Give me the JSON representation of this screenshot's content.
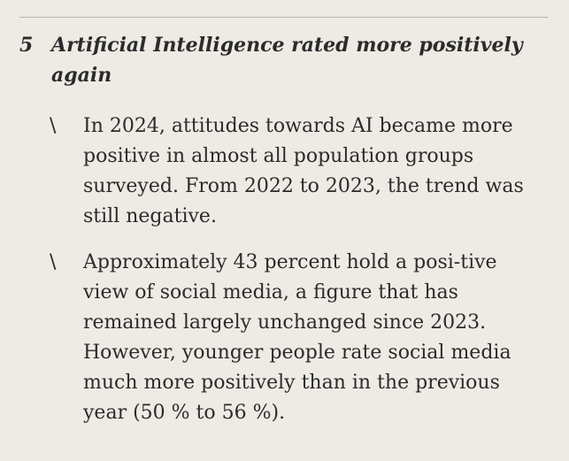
{
  "section": {
    "number": "5",
    "title": "Artificial Intelligence rated more positively again"
  },
  "bullet_marker": "\\",
  "bullets": [
    "In 2024, attitudes towards AI became more positive in almost all population groups surveyed. From 2022 to 2023, the trend was still negative.",
    "Approximately 43 percent hold a posi-tive view of social media, a figure that has remained largely unchanged since 2023. However, younger people rate social media much more positively than in the previous year (50 % to 56 %)."
  ]
}
